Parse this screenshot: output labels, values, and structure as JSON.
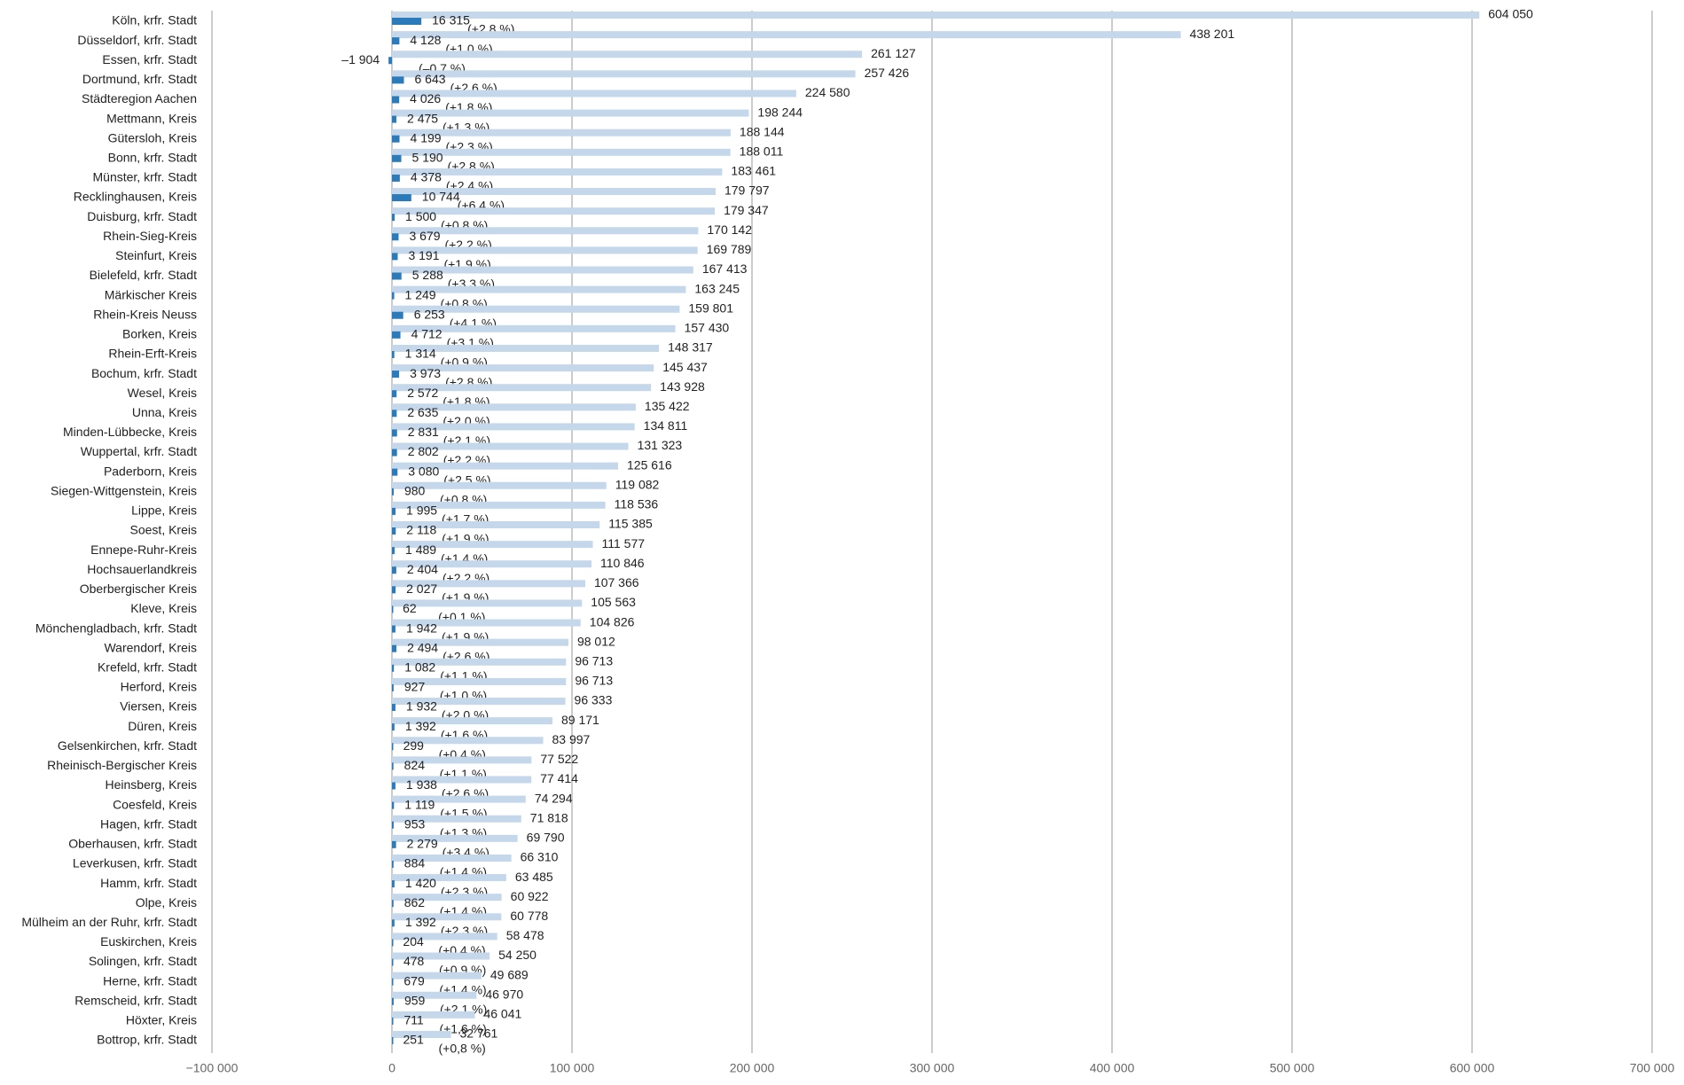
{
  "chart_data": {
    "type": "bar",
    "orientation": "horizontal",
    "categories": [
      "Köln, krfr. Stadt",
      "Düsseldorf, krfr. Stadt",
      "Essen, krfr. Stadt",
      "Dortmund, krfr. Stadt",
      "Städteregion Aachen",
      "Mettmann, Kreis",
      "Gütersloh, Kreis",
      "Bonn, krfr. Stadt",
      "Münster, krfr. Stadt",
      "Recklinghausen, Kreis",
      "Duisburg, krfr. Stadt",
      "Rhein-Sieg-Kreis",
      "Steinfurt, Kreis",
      "Bielefeld, krfr. Stadt",
      "Märkischer Kreis",
      "Rhein-Kreis Neuss",
      "Borken, Kreis",
      "Rhein-Erft-Kreis",
      "Bochum, krfr. Stadt",
      "Wesel, Kreis",
      "Unna, Kreis",
      "Minden-Lübbecke, Kreis",
      "Wuppertal, krfr. Stadt",
      "Paderborn, Kreis",
      "Siegen-Wittgenstein, Kreis",
      "Lippe, Kreis",
      "Soest, Kreis",
      "Ennepe-Ruhr-Kreis",
      "Hochsauerlandkreis",
      "Oberbergischer Kreis",
      "Kleve, Kreis",
      "Mönchengladbach, krfr. Stadt",
      "Warendorf, Kreis",
      "Krefeld, krfr. Stadt",
      "Herford, Kreis",
      "Viersen, Kreis",
      "Düren, Kreis",
      "Gelsenkirchen, krfr. Stadt",
      "Rheinisch-Bergischer Kreis",
      "Heinsberg, Kreis",
      "Coesfeld, Kreis",
      "Hagen, krfr. Stadt",
      "Oberhausen, krfr. Stadt",
      "Leverkusen, krfr. Stadt",
      "Hamm, krfr. Stadt",
      "Olpe, Kreis",
      "Mülheim an der Ruhr, krfr. Stadt",
      "Euskirchen, Kreis",
      "Solingen, krfr. Stadt",
      "Herne, krfr. Stadt",
      "Remscheid, krfr. Stadt",
      "Höxter, Kreis",
      "Bottrop, krfr. Stadt"
    ],
    "series": [
      {
        "color": "#c5d7ea",
        "values": [
          604050,
          438201,
          261127,
          257426,
          224580,
          198244,
          188144,
          188011,
          183461,
          179797,
          179347,
          170142,
          169789,
          167413,
          163245,
          159801,
          157430,
          148317,
          145437,
          143928,
          135422,
          134811,
          131323,
          125616,
          119082,
          118536,
          115385,
          111577,
          110846,
          107366,
          105563,
          104826,
          98012,
          96713,
          96713,
          96333,
          89171,
          83997,
          77522,
          77414,
          74294,
          71818,
          69790,
          66310,
          63485,
          60922,
          60778,
          58478,
          54250,
          49689,
          46970,
          46041,
          32761
        ],
        "value_labels": [
          "604 050",
          "438 201",
          "261 127",
          "257 426",
          "224 580",
          "198 244",
          "188 144",
          "188 011",
          "183 461",
          "179 797",
          "179 347",
          "170 142",
          "169 789",
          "167 413",
          "163 245",
          "159 801",
          "157 430",
          "148 317",
          "145 437",
          "143 928",
          "135 422",
          "134 811",
          "131 323",
          "125 616",
          "119 082",
          "118 536",
          "115 385",
          "111 577",
          "110 846",
          "107 366",
          "105 563",
          "104 826",
          "98 012",
          "96 713",
          "96 713",
          "96 333",
          "89 171",
          "83 997",
          "77 522",
          "77 414",
          "74 294",
          "71 818",
          "69 790",
          "66 310",
          "63 485",
          "60 922",
          "60 778",
          "58 478",
          "54 250",
          "49 689",
          "46 970",
          "46 041",
          "32 761"
        ]
      },
      {
        "color": "#2b7bba",
        "values": [
          16315,
          4128,
          -1904,
          6643,
          4026,
          2475,
          4199,
          5190,
          4378,
          10744,
          1500,
          3679,
          3191,
          5288,
          1249,
          6253,
          4712,
          1314,
          3973,
          2572,
          2635,
          2831,
          2802,
          3080,
          980,
          1995,
          2118,
          1489,
          2404,
          2027,
          62,
          1942,
          2494,
          1082,
          927,
          1932,
          1392,
          299,
          824,
          1938,
          1119,
          953,
          2279,
          884,
          1420,
          862,
          1392,
          204,
          478,
          679,
          959,
          711,
          251
        ],
        "value_labels": [
          "16 315",
          "4 128",
          "–1 904",
          "6 643",
          "4 026",
          "2 475",
          "4 199",
          "5 190",
          "4 378",
          "10 744",
          "1 500",
          "3 679",
          "3 191",
          "5 288",
          "1 249",
          "6 253",
          "4 712",
          "1 314",
          "3 973",
          "2 572",
          "2 635",
          "2 831",
          "2 802",
          "3 080",
          "980",
          "1 995",
          "2 118",
          "1 489",
          "2 404",
          "2 027",
          "62",
          "1 942",
          "2 494",
          "1 082",
          "927",
          "1 932",
          "1 392",
          "299",
          "824",
          "1 938",
          "1 119",
          "953",
          "2 279",
          "884",
          "1 420",
          "862",
          "1 392",
          "204",
          "478",
          "679",
          "959",
          "711",
          "251"
        ],
        "percent_labels": [
          "(+2,8 %)",
          "(+1,0 %)",
          "(–0,7 %)",
          "(+2,6 %)",
          "(+1,8 %)",
          "(+1,3 %)",
          "(+2,3 %)",
          "(+2,8 %)",
          "(+2,4 %)",
          "(+6,4 %)",
          "(+0,8 %)",
          "(+2,2 %)",
          "(+1,9 %)",
          "(+3,3 %)",
          "(+0,8 %)",
          "(+4,1 %)",
          "(+3,1 %)",
          "(+0,9 %)",
          "(+2,8 %)",
          "(+1,8 %)",
          "(+2,0 %)",
          "(+2,1 %)",
          "(+2,2 %)",
          "(+2,5 %)",
          "(+0,8 %)",
          "(+1,7 %)",
          "(+1,9 %)",
          "(+1,4 %)",
          "(+2,2 %)",
          "(+1,9 %)",
          "(+0,1 %)",
          "(+1,9 %)",
          "(+2,6 %)",
          "(+1,1 %)",
          "(+1,0 %)",
          "(+2,0 %)",
          "(+1,6 %)",
          "(+0,4 %)",
          "(+1,1 %)",
          "(+2,6 %)",
          "(+1,5 %)",
          "(+1,3 %)",
          "(+3,4 %)",
          "(+1,4 %)",
          "(+2,3 %)",
          "(+1,4 %)",
          "(+2,3 %)",
          "(+0,4 %)",
          "(+0,9 %)",
          "(+1,4 %)",
          "(+2,1 %)",
          "(+1,6 %)",
          "(+0,8 %)"
        ]
      }
    ],
    "xlim": [
      -100000,
      700000
    ],
    "xticks": [
      {
        "value": -100000,
        "label": "−100 000"
      },
      0,
      {
        "value": 100000,
        "label": "100 000"
      },
      {
        "value": 200000,
        "label": "200 000"
      },
      {
        "value": 300000,
        "label": "300 000"
      },
      {
        "value": 400000,
        "label": "400 000"
      },
      {
        "value": 500000,
        "label": "500 000"
      },
      {
        "value": 600000,
        "label": "600 000"
      },
      {
        "value": 700000,
        "label": "700 000"
      }
    ],
    "grid": true
  }
}
